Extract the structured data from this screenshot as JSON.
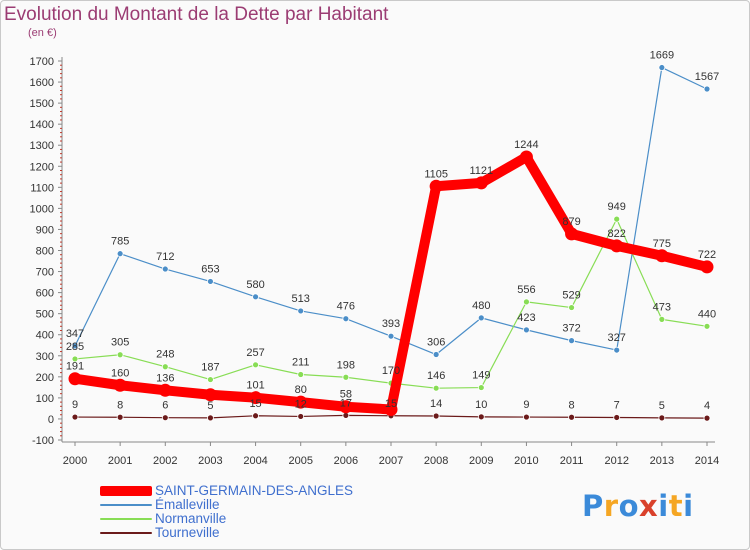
{
  "chart_data": {
    "type": "line",
    "title": "Evolution du Montant de la Dette par Habitant",
    "ylabel": "(en €)",
    "x": [
      2000,
      2001,
      2002,
      2003,
      2004,
      2005,
      2006,
      2007,
      2008,
      2009,
      2010,
      2011,
      2012,
      2013,
      2014
    ],
    "ylim": [
      -100,
      1700
    ],
    "yticks": [
      -100,
      0,
      100,
      200,
      300,
      400,
      500,
      600,
      700,
      800,
      900,
      1000,
      1100,
      1200,
      1300,
      1400,
      1500,
      1600,
      1700
    ],
    "grid": false,
    "legend_position": "bottom-left",
    "series": [
      {
        "name": "SAINT-GERMAIN-DES-ANGLES",
        "color": "#ff0000",
        "values": [
          191,
          160,
          136,
          115,
          101,
          80,
          58,
          45,
          1105,
          1121,
          1244,
          879,
          822,
          775,
          722
        ],
        "labels": [
          "191",
          "160",
          "136",
          "",
          "101",
          "80",
          "58",
          "",
          "1105",
          "1121",
          "1244",
          "879",
          "822",
          "775",
          "722"
        ]
      },
      {
        "name": "Émalleville",
        "color": "#4b8ec8",
        "values": [
          347,
          785,
          712,
          653,
          580,
          513,
          476,
          393,
          306,
          480,
          423,
          372,
          327,
          1669,
          1567
        ],
        "labels": [
          "347",
          "785",
          "712",
          "653",
          "580",
          "513",
          "476",
          "393",
          "306",
          "480",
          "423",
          "372",
          "327",
          "1669",
          "1567"
        ]
      },
      {
        "name": "Normanville",
        "color": "#88dd55",
        "values": [
          285,
          305,
          248,
          187,
          257,
          211,
          198,
          170,
          146,
          149,
          556,
          529,
          949,
          473,
          440
        ],
        "labels": [
          "285",
          "305",
          "248",
          "187",
          "257",
          "211",
          "198",
          "170",
          "146",
          "149",
          "556",
          "529",
          "949",
          "473",
          "440"
        ]
      },
      {
        "name": "Tourneville",
        "color": "#6b1a1a",
        "values": [
          9,
          8,
          6,
          5,
          15,
          12,
          17,
          15,
          14,
          10,
          9,
          8,
          7,
          5,
          4
        ],
        "labels": [
          "9",
          "8",
          "6",
          "5",
          "15",
          "12",
          "17",
          "15",
          "14",
          "10",
          "9",
          "8",
          "7",
          "5",
          "4"
        ]
      }
    ]
  },
  "logo": {
    "letters": [
      "P",
      "r",
      "o",
      "x",
      "i",
      "t",
      "i"
    ],
    "colors": [
      "#3b8ad9",
      "#f5a623",
      "#3b8ad9",
      "#d9412b",
      "#3b8ad9",
      "#f5a623",
      "#3b8ad9"
    ]
  }
}
